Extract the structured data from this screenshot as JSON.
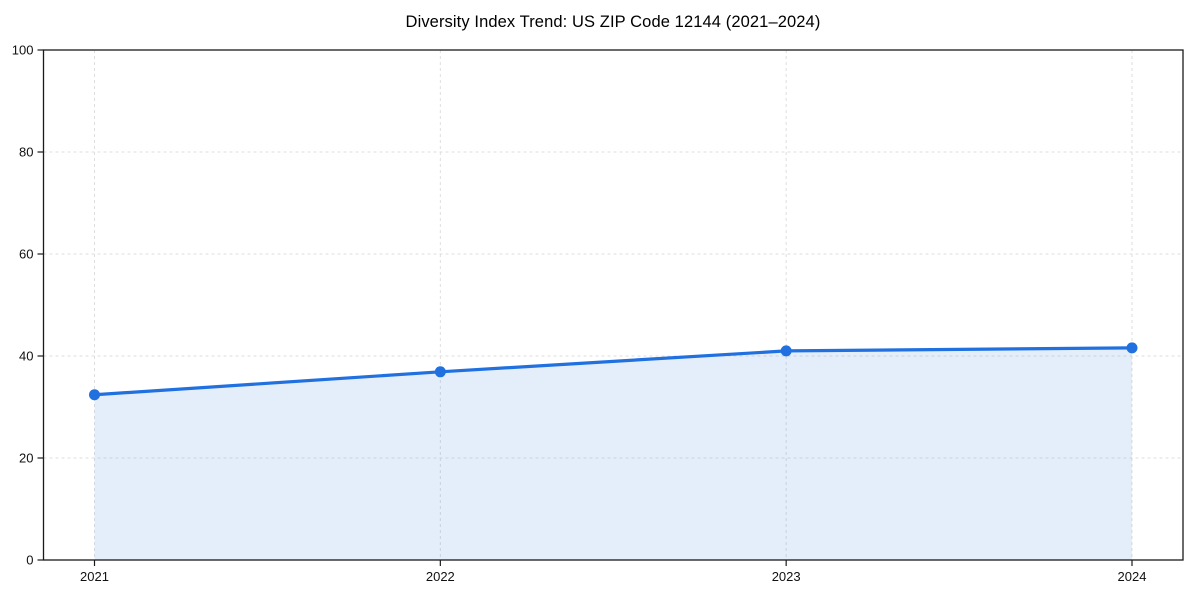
{
  "chart_data": {
    "type": "line",
    "title": "Diversity Index Trend: US ZIP Code 12144 (2021–2024)",
    "x": [
      "2021",
      "2022",
      "2023",
      "2024"
    ],
    "series": [
      {
        "name": "Diversity Index",
        "values": [
          32.4,
          36.9,
          41.0,
          41.6
        ]
      }
    ],
    "xlabel": "",
    "ylabel": "",
    "ylim": [
      0,
      100
    ],
    "yticks": [
      0,
      20,
      40,
      60,
      80,
      100
    ],
    "grid": true,
    "grid_style": "dashed",
    "legend": "none",
    "area_fill": true,
    "marker": "circle",
    "colors": {
      "line": "#2070e0",
      "fill": "rgba(32,112,224,0.12)",
      "gridline": "#dedede",
      "spine": "#1a1a1a",
      "text": "#111111",
      "background": "#ffffff"
    }
  }
}
